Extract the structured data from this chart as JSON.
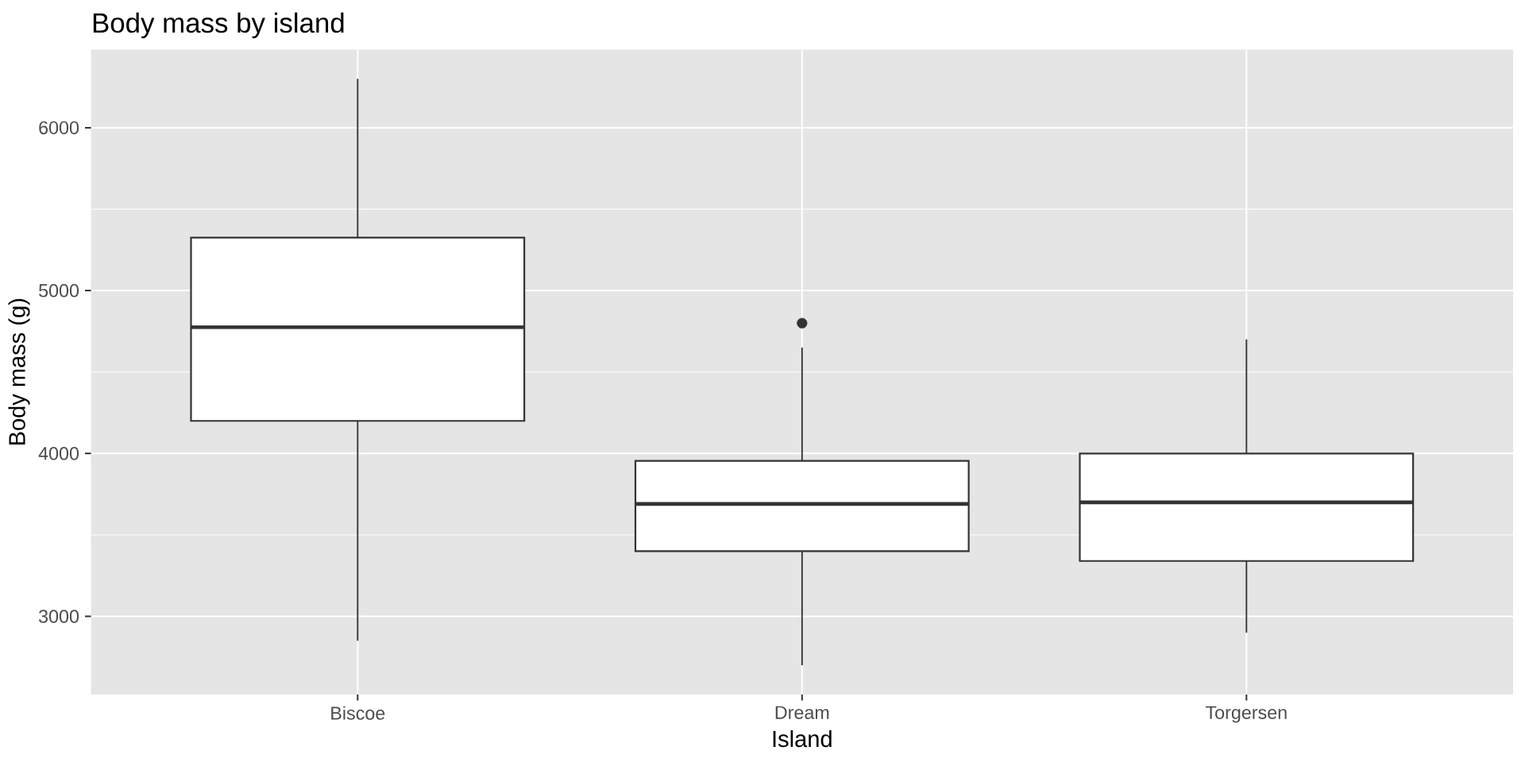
{
  "chart_data": {
    "type": "box",
    "title": "Body mass by island",
    "xlabel": "Island",
    "ylabel": "Body mass (g)",
    "categories": [
      "Biscoe",
      "Dream",
      "Torgersen"
    ],
    "boxes": [
      {
        "low": 2850,
        "q1": 4200,
        "median": 4775,
        "q3": 5325,
        "high": 6300
      },
      {
        "low": 2700,
        "q1": 3400,
        "median": 3690,
        "q3": 3955,
        "high": 4650,
        "outliers": [
          4800
        ]
      },
      {
        "low": 2900,
        "q1": 3340,
        "median": 3700,
        "q3": 4000,
        "high": 4700
      }
    ],
    "color": "#333333",
    "ylim": [
      2520,
      6480
    ],
    "yticks": [
      3000,
      4000,
      5000,
      6000
    ],
    "grid": true
  }
}
